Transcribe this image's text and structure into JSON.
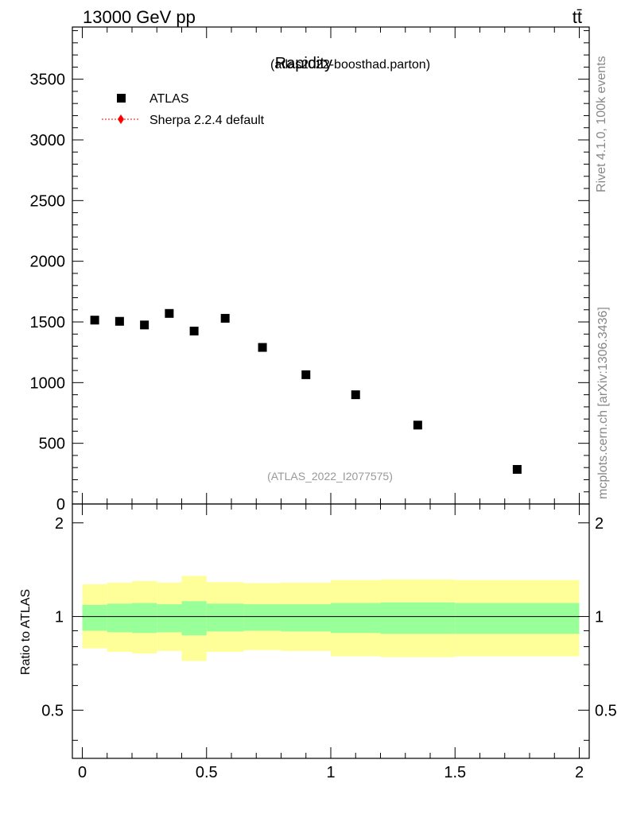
{
  "header": {
    "energy_label": "13000 GeV pp",
    "process_label": "tt̄"
  },
  "side_labels": {
    "rivet": "Rivet 4.1.0,  100k events",
    "mcplots": "mcplots.cern.ch [arXiv:1306.3436]"
  },
  "chart_data": [
    {
      "type": "scatter",
      "panel": "main",
      "title": "Rapidity",
      "subtitle": "(atlas2022-boosthad.parton)",
      "watermark": "(ATLAS_2022_I2077575)",
      "xlim": [
        -0.04,
        2.04
      ],
      "ylim": [
        0,
        3930
      ],
      "yticks": [
        0,
        500,
        1000,
        1500,
        2000,
        2500,
        3000,
        3500
      ],
      "ytick_labels": [
        "0",
        "500",
        "1000",
        "1500",
        "2000",
        "2500",
        "3000",
        "3500"
      ],
      "legend_position": "top-left",
      "legend": [
        {
          "label": "ATLAS",
          "marker": "square",
          "color": "#000000"
        },
        {
          "label": "Sherpa 2.2.4 default",
          "marker": "diamond-dotted-line",
          "color": "#ff0000"
        }
      ],
      "series": [
        {
          "name": "ATLAS",
          "x": [
            0.05,
            0.15,
            0.25,
            0.35,
            0.45,
            0.575,
            0.725,
            0.9,
            1.1,
            1.35,
            1.75
          ],
          "values": [
            1515,
            1505,
            1475,
            1570,
            1425,
            1530,
            1290,
            1065,
            900,
            650,
            285
          ]
        }
      ]
    },
    {
      "type": "area",
      "panel": "ratio",
      "ylabel": "Ratio to ATLAS",
      "xlim": [
        -0.04,
        2.04
      ],
      "ylim": [
        0.35,
        2.3
      ],
      "yticks": [
        0.5,
        1,
        2
      ],
      "ytick_labels": [
        "0.5",
        "1",
        "2"
      ],
      "xticks": [
        0,
        0.5,
        1,
        1.5,
        2
      ],
      "xtick_labels": [
        "0",
        "0.5",
        "1",
        "1.5",
        "2"
      ],
      "reference_line": 1,
      "bin_edges": [
        0,
        0.1,
        0.2,
        0.3,
        0.4,
        0.5,
        0.65,
        0.8,
        1.0,
        1.2,
        1.5,
        2.0
      ],
      "band_inner": {
        "color": "#99ff99",
        "lower": [
          0.9,
          0.89,
          0.885,
          0.89,
          0.87,
          0.895,
          0.9,
          0.895,
          0.885,
          0.88,
          0.88
        ],
        "upper": [
          1.09,
          1.1,
          1.105,
          1.095,
          1.12,
          1.1,
          1.095,
          1.095,
          1.105,
          1.11,
          1.105
        ]
      },
      "band_outer": {
        "color": "#ffff99",
        "lower": [
          0.79,
          0.77,
          0.76,
          0.775,
          0.72,
          0.77,
          0.78,
          0.775,
          0.745,
          0.74,
          0.745
        ],
        "upper": [
          1.27,
          1.285,
          1.3,
          1.285,
          1.35,
          1.29,
          1.28,
          1.285,
          1.31,
          1.315,
          1.31
        ]
      }
    }
  ]
}
